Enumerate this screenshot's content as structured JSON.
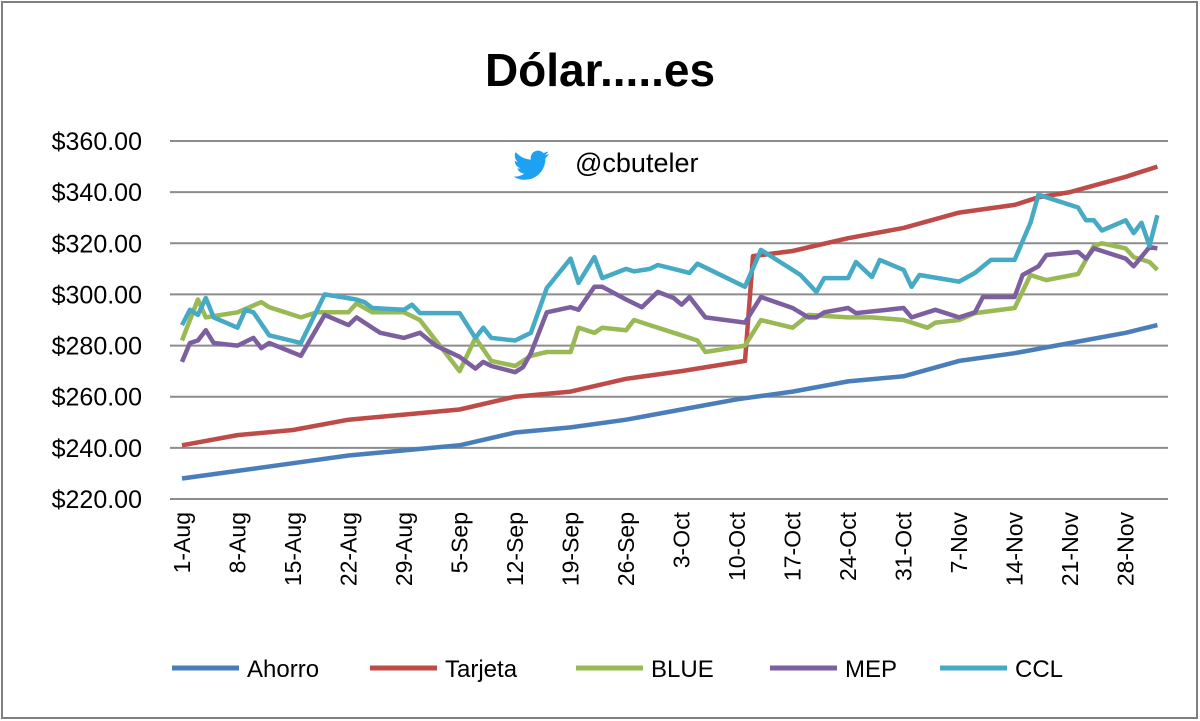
{
  "chart_data": {
    "type": "line",
    "title": "Dólar.....es",
    "annotation": "@cbuteler",
    "annotation_icon": "twitter-bird-icon",
    "xlabel": "",
    "ylabel": "",
    "ylim": [
      220,
      360
    ],
    "y_ticks": [
      "$360.00",
      "$340.00",
      "$320.00",
      "$300.00",
      "$280.00",
      "$260.00",
      "$240.00",
      "$220.00"
    ],
    "y_tick_values": [
      360,
      340,
      320,
      300,
      280,
      260,
      240,
      220
    ],
    "x_ticks": [
      "1-Aug",
      "8-Aug",
      "15-Aug",
      "22-Aug",
      "29-Aug",
      "5-Sep",
      "12-Sep",
      "19-Sep",
      "26-Sep",
      "3-Oct",
      "10-Oct",
      "17-Oct",
      "24-Oct",
      "31-Oct",
      "7-Nov",
      "14-Nov",
      "21-Nov",
      "28-Nov"
    ],
    "grid": true,
    "legend_position": "bottom",
    "series": [
      {
        "name": "Ahorro",
        "color": "#4a7ebb",
        "points": [
          [
            "1-Aug",
            228
          ],
          [
            "8-Aug",
            231
          ],
          [
            "15-Aug",
            234
          ],
          [
            "22-Aug",
            237
          ],
          [
            "29-Aug",
            239
          ],
          [
            "5-Sep",
            241
          ],
          [
            "12-Sep",
            246
          ],
          [
            "19-Sep",
            248
          ],
          [
            "26-Sep",
            251
          ],
          [
            "3-Oct",
            255
          ],
          [
            "10-Oct",
            259
          ],
          [
            "17-Oct",
            262
          ],
          [
            "24-Oct",
            266
          ],
          [
            "31-Oct",
            268
          ],
          [
            "7-Nov",
            274
          ],
          [
            "14-Nov",
            277
          ],
          [
            "21-Nov",
            281
          ],
          [
            "28-Nov",
            285
          ],
          [
            "2-Dec",
            288
          ]
        ]
      },
      {
        "name": "Tarjeta",
        "color": "#be4b48",
        "points": [
          [
            "1-Aug",
            241
          ],
          [
            "8-Aug",
            245
          ],
          [
            "15-Aug",
            247
          ],
          [
            "22-Aug",
            251
          ],
          [
            "29-Aug",
            253
          ],
          [
            "5-Sep",
            255
          ],
          [
            "12-Sep",
            260
          ],
          [
            "19-Sep",
            262
          ],
          [
            "26-Sep",
            267
          ],
          [
            "3-Oct",
            270
          ],
          [
            "11-Oct",
            274
          ],
          [
            "12-Oct",
            315
          ],
          [
            "17-Oct",
            317
          ],
          [
            "24-Oct",
            322
          ],
          [
            "31-Oct",
            326
          ],
          [
            "7-Nov",
            332
          ],
          [
            "14-Nov",
            335
          ],
          [
            "17-Nov",
            338
          ],
          [
            "21-Nov",
            340
          ],
          [
            "28-Nov",
            346
          ],
          [
            "2-Dec",
            350
          ]
        ]
      },
      {
        "name": "BLUE",
        "color": "#98b954",
        "points": [
          [
            "1-Aug",
            282
          ],
          [
            "3-Aug",
            298
          ],
          [
            "4-Aug",
            291
          ],
          [
            "8-Aug",
            293
          ],
          [
            "11-Aug",
            297
          ],
          [
            "12-Aug",
            295
          ],
          [
            "16-Aug",
            291
          ],
          [
            "18-Aug",
            293
          ],
          [
            "22-Aug",
            293
          ],
          [
            "23-Aug",
            296.5
          ],
          [
            "25-Aug",
            293
          ],
          [
            "29-Aug",
            293
          ],
          [
            "31-Aug",
            290
          ],
          [
            "2-Sep",
            282
          ],
          [
            "5-Sep",
            270
          ],
          [
            "7-Sep",
            283
          ],
          [
            "9-Sep",
            274
          ],
          [
            "12-Sep",
            272
          ],
          [
            "14-Sep",
            276
          ],
          [
            "16-Sep",
            277.5
          ],
          [
            "19-Sep",
            277.5
          ],
          [
            "20-Sep",
            287
          ],
          [
            "22-Sep",
            285
          ],
          [
            "23-Sep",
            287
          ],
          [
            "26-Sep",
            286
          ],
          [
            "27-Sep",
            290
          ],
          [
            "29-Sep",
            288
          ],
          [
            "2-Oct",
            285
          ],
          [
            "4-Oct",
            283
          ],
          [
            "5-Oct",
            282
          ],
          [
            "6-Oct",
            277.5
          ],
          [
            "11-Oct",
            280
          ],
          [
            "13-Oct",
            290
          ],
          [
            "17-Oct",
            287
          ],
          [
            "19-Oct",
            292
          ],
          [
            "24-Oct",
            291
          ],
          [
            "27-Oct",
            291
          ],
          [
            "31-Oct",
            290
          ],
          [
            "3-Nov",
            287
          ],
          [
            "4-Nov",
            289
          ],
          [
            "7-Nov",
            290
          ],
          [
            "9-Nov",
            292.7
          ],
          [
            "14-Nov",
            294.7
          ],
          [
            "16-Nov",
            307.6
          ],
          [
            "18-Nov",
            305.6
          ],
          [
            "22-Nov",
            308
          ],
          [
            "24-Nov",
            319
          ],
          [
            "25-Nov",
            320
          ],
          [
            "28-Nov",
            318
          ],
          [
            "29-Nov",
            314.6
          ],
          [
            "1-Dec",
            312.7
          ],
          [
            "2-Dec",
            309.6
          ]
        ]
      },
      {
        "name": "MEP",
        "color": "#7d5fa0",
        "points": [
          [
            "1-Aug",
            273.6
          ],
          [
            "2-Aug",
            281
          ],
          [
            "3-Aug",
            282
          ],
          [
            "4-Aug",
            286
          ],
          [
            "5-Aug",
            281
          ],
          [
            "8-Aug",
            280
          ],
          [
            "10-Aug",
            283
          ],
          [
            "11-Aug",
            279
          ],
          [
            "12-Aug",
            281
          ],
          [
            "16-Aug",
            276
          ],
          [
            "19-Aug",
            292
          ],
          [
            "22-Aug",
            288
          ],
          [
            "23-Aug",
            291
          ],
          [
            "25-Aug",
            287
          ],
          [
            "26-Aug",
            285
          ],
          [
            "29-Aug",
            283
          ],
          [
            "31-Aug",
            285
          ],
          [
            "2-Sep",
            280
          ],
          [
            "5-Sep",
            275.6
          ],
          [
            "7-Sep",
            271
          ],
          [
            "8-Sep",
            273.6
          ],
          [
            "9-Sep",
            272
          ],
          [
            "12-Sep",
            269.6
          ],
          [
            "13-Sep",
            271.6
          ],
          [
            "14-Sep",
            277
          ],
          [
            "16-Sep",
            293
          ],
          [
            "19-Sep",
            295
          ],
          [
            "20-Sep",
            294
          ],
          [
            "22-Sep",
            303
          ],
          [
            "23-Sep",
            303
          ],
          [
            "26-Sep",
            298
          ],
          [
            "28-Sep",
            295
          ],
          [
            "30-Sep",
            301
          ],
          [
            "2-Oct",
            298.6
          ],
          [
            "3-Oct",
            296
          ],
          [
            "4-Oct",
            299
          ],
          [
            "6-Oct",
            291
          ],
          [
            "11-Oct",
            289
          ],
          [
            "13-Oct",
            299
          ],
          [
            "17-Oct",
            294.7
          ],
          [
            "19-Oct",
            291
          ],
          [
            "20-Oct",
            291
          ],
          [
            "21-Oct",
            293
          ],
          [
            "24-Oct",
            294.7
          ],
          [
            "25-Oct",
            292.7
          ],
          [
            "31-Oct",
            294.7
          ],
          [
            "1-Nov",
            291
          ],
          [
            "4-Nov",
            294
          ],
          [
            "7-Nov",
            291
          ],
          [
            "9-Nov",
            293
          ],
          [
            "10-Nov",
            299
          ],
          [
            "14-Nov",
            299
          ],
          [
            "15-Nov",
            307.6
          ],
          [
            "17-Nov",
            311
          ],
          [
            "18-Nov",
            315.4
          ],
          [
            "22-Nov",
            316.6
          ],
          [
            "23-Nov",
            314
          ],
          [
            "24-Nov",
            318
          ],
          [
            "28-Nov",
            314
          ],
          [
            "29-Nov",
            311
          ],
          [
            "1-Dec",
            318.5
          ],
          [
            "2-Dec",
            318
          ]
        ]
      },
      {
        "name": "CCL",
        "color": "#46aac5",
        "points": [
          [
            "1-Aug",
            288
          ],
          [
            "2-Aug",
            294
          ],
          [
            "3-Aug",
            292
          ],
          [
            "4-Aug",
            298.6
          ],
          [
            "5-Aug",
            291
          ],
          [
            "8-Aug",
            287
          ],
          [
            "9-Aug",
            294
          ],
          [
            "10-Aug",
            293
          ],
          [
            "12-Aug",
            284
          ],
          [
            "16-Aug",
            281
          ],
          [
            "19-Aug",
            300
          ],
          [
            "23-Aug",
            298
          ],
          [
            "24-Aug",
            297
          ],
          [
            "25-Aug",
            294.7
          ],
          [
            "29-Aug",
            294
          ],
          [
            "30-Aug",
            296
          ],
          [
            "31-Aug",
            292.7
          ],
          [
            "5-Sep",
            292.7
          ],
          [
            "7-Sep",
            283
          ],
          [
            "8-Sep",
            287
          ],
          [
            "9-Sep",
            283
          ],
          [
            "12-Sep",
            282
          ],
          [
            "14-Sep",
            285
          ],
          [
            "16-Sep",
            302.5
          ],
          [
            "19-Sep",
            314
          ],
          [
            "20-Sep",
            304.5
          ],
          [
            "22-Sep",
            314.6
          ],
          [
            "23-Sep",
            306.4
          ],
          [
            "26-Sep",
            310
          ],
          [
            "27-Sep",
            309
          ],
          [
            "29-Sep",
            310
          ],
          [
            "30-Sep",
            311.5
          ],
          [
            "2-Oct",
            310
          ],
          [
            "4-Oct",
            308.4
          ],
          [
            "5-Oct",
            312
          ],
          [
            "11-Oct",
            303
          ],
          [
            "13-Oct",
            317.4
          ],
          [
            "17-Oct",
            309.6
          ],
          [
            "18-Oct",
            307.6
          ],
          [
            "20-Oct",
            301
          ],
          [
            "21-Oct",
            306.4
          ],
          [
            "24-Oct",
            306.4
          ],
          [
            "25-Oct",
            312.7
          ],
          [
            "27-Oct",
            306.8
          ],
          [
            "28-Oct",
            313.5
          ],
          [
            "31-Oct",
            309.6
          ],
          [
            "1-Nov",
            303
          ],
          [
            "2-Nov",
            307.6
          ],
          [
            "7-Nov",
            305
          ],
          [
            "9-Nov",
            308.4
          ],
          [
            "11-Nov",
            313.5
          ],
          [
            "14-Nov",
            313.5
          ],
          [
            "16-Nov",
            328
          ],
          [
            "17-Nov",
            339
          ],
          [
            "22-Nov",
            334
          ],
          [
            "23-Nov",
            329
          ],
          [
            "24-Nov",
            329
          ],
          [
            "25-Nov",
            325
          ],
          [
            "28-Nov",
            329
          ],
          [
            "29-Nov",
            324
          ],
          [
            "30-Nov",
            328
          ],
          [
            "1-Dec",
            319
          ],
          [
            "2-Dec",
            331
          ]
        ]
      }
    ]
  }
}
